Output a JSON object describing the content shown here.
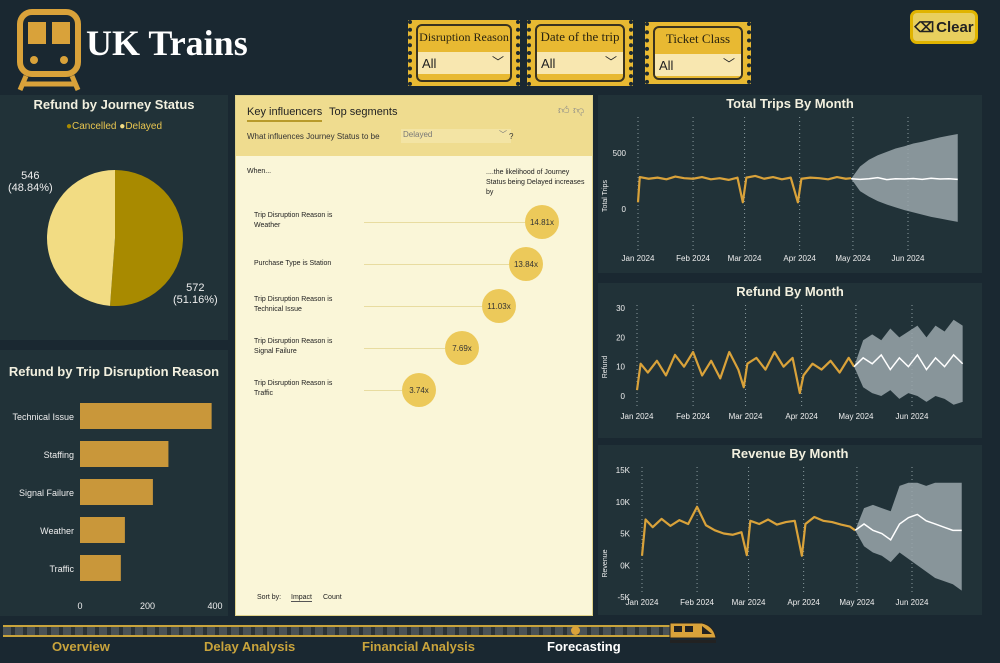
{
  "header": {
    "title": "UK Trains",
    "logo_icon": "train-front-icon",
    "clear_label": "Clear",
    "clear_icon": "eraser-icon"
  },
  "slicers": [
    {
      "label": "Disruption Reason",
      "value": "All"
    },
    {
      "label": "Date of the trip",
      "value": "All"
    },
    {
      "label": "Ticket Class",
      "value": "All"
    }
  ],
  "colors": {
    "background": "#1a2831",
    "panel": "#213238",
    "accent": "#e8b932",
    "series": "#d9a23a",
    "forecast": "#ffffff",
    "band": "#9aa7ab",
    "cancelled": "#a88a00",
    "delayed": "#f2dc83"
  },
  "pie": {
    "title": "Refund by Journey Status",
    "legend": [
      "Cancelled",
      "Delayed"
    ],
    "chart_data": {
      "type": "pie",
      "title": "Refund by Journey Status",
      "slices": [
        {
          "name": "Cancelled",
          "value": 572,
          "label": "572",
          "pct": "(51.16%)"
        },
        {
          "name": "Delayed",
          "value": 546,
          "label": "546",
          "pct": "(48.84%)"
        }
      ],
      "legend_position": "top"
    }
  },
  "bars": {
    "title": "Refund by Trip Disruption Reason",
    "chart_data": {
      "type": "bar",
      "orientation": "horizontal",
      "title": "Refund by Trip Disruption Reason",
      "categories": [
        "Technical Issue",
        "Staffing",
        "Signal Failure",
        "Weather",
        "Traffic"
      ],
      "values": [
        390,
        262,
        216,
        133,
        121
      ],
      "xlim": [
        0,
        400
      ],
      "ticks": [
        "0",
        "200",
        "400"
      ],
      "grid": false
    }
  },
  "influencers": {
    "tabs": [
      "Key influencers",
      "Top segments"
    ],
    "question": "What influences Journey Status to be",
    "selected": "Delayed",
    "question_mark": "?",
    "when": "When...",
    "likelihood": "....the likelihood of Journey Status being Delayed increases by",
    "items": [
      {
        "line1": "Trip Disruption Reason is",
        "line2": "Weather",
        "value": "14.81x",
        "factor": 14.81
      },
      {
        "line1": "Purchase Type is Station",
        "line2": "",
        "value": "13.84x",
        "factor": 13.84
      },
      {
        "line1": "Trip Disruption Reason is",
        "line2": "Technical Issue",
        "value": "11.03x",
        "factor": 11.03
      },
      {
        "line1": "Trip Disruption Reason is",
        "line2": "Signal Failure",
        "value": "7.69x",
        "factor": 7.69
      },
      {
        "line1": "Trip Disruption Reason is",
        "line2": "Traffic",
        "value": "3.74x",
        "factor": 3.74
      }
    ],
    "sort_by": "Sort by:",
    "sort_options": [
      "Impact",
      "Count"
    ]
  },
  "chart_data": [
    {
      "type": "line",
      "title": "Total Trips By Month",
      "ylabel": "Total Trips",
      "yticks": [
        0,
        500
      ],
      "ylim": [
        -150,
        700
      ],
      "xticks": [
        "Jan 2024",
        "Feb 2024",
        "Mar 2024",
        "Apr 2024",
        "May 2024",
        "Jun 2024"
      ],
      "grid": "vertical-dotted",
      "actual": {
        "x": [
          "2024-01-01",
          "2024-01-02",
          "2024-01-07",
          "2024-01-12",
          "2024-01-17",
          "2024-01-22",
          "2024-01-27",
          "2024-02-01",
          "2024-02-06",
          "2024-02-11",
          "2024-02-16",
          "2024-02-21",
          "2024-02-26",
          "2024-02-29",
          "2024-03-02",
          "2024-03-07",
          "2024-03-12",
          "2024-03-17",
          "2024-03-22",
          "2024-03-27",
          "2024-03-31",
          "2024-04-02",
          "2024-04-07",
          "2024-04-12",
          "2024-04-17",
          "2024-04-22",
          "2024-04-27",
          "2024-04-30"
        ],
        "y": [
          60,
          285,
          270,
          280,
          265,
          290,
          275,
          270,
          285,
          265,
          275,
          260,
          280,
          60,
          280,
          295,
          270,
          285,
          265,
          280,
          60,
          270,
          280,
          275,
          265,
          285,
          270,
          275
        ]
      },
      "forecast": {
        "x": [
          "2024-04-30",
          "2024-05-05",
          "2024-05-10",
          "2024-05-15",
          "2024-05-20",
          "2024-05-25",
          "2024-05-30",
          "2024-06-04",
          "2024-06-09",
          "2024-06-14",
          "2024-06-19",
          "2024-06-24",
          "2024-06-29"
        ],
        "y": [
          270,
          265,
          270,
          280,
          262,
          270,
          268,
          272,
          265,
          275,
          268,
          270,
          265
        ],
        "upper": [
          270,
          380,
          440,
          480,
          510,
          540,
          560,
          585,
          600,
          620,
          640,
          655,
          670
        ],
        "lower": [
          270,
          160,
          110,
          70,
          40,
          15,
          -10,
          -30,
          -50,
          -70,
          -85,
          -100,
          -115
        ]
      }
    },
    {
      "type": "line",
      "title": "Refund By Month",
      "ylabel": "Refund",
      "yticks": [
        0,
        10,
        20,
        30
      ],
      "ylim": [
        -5,
        32
      ],
      "xticks": [
        "Jan 2024",
        "Feb 2024",
        "Mar 2024",
        "Apr 2024",
        "May 2024",
        "Jun 2024"
      ],
      "grid": "vertical-dotted",
      "actual": {
        "x": [
          "2024-01-01",
          "2024-01-03",
          "2024-01-07",
          "2024-01-12",
          "2024-01-17",
          "2024-01-22",
          "2024-01-27",
          "2024-02-01",
          "2024-02-06",
          "2024-02-11",
          "2024-02-16",
          "2024-02-21",
          "2024-02-26",
          "2024-02-29",
          "2024-03-02",
          "2024-03-07",
          "2024-03-12",
          "2024-03-17",
          "2024-03-22",
          "2024-03-27",
          "2024-03-31",
          "2024-04-02",
          "2024-04-07",
          "2024-04-12",
          "2024-04-17",
          "2024-04-22",
          "2024-04-27",
          "2024-04-30"
        ],
        "y": [
          2,
          11,
          8,
          12,
          7,
          14,
          10,
          15,
          7,
          12,
          6,
          15,
          9,
          3,
          11,
          13,
          9,
          15,
          10,
          13,
          1,
          7,
          11,
          9,
          12,
          8,
          13,
          10
        ]
      },
      "forecast": {
        "x": [
          "2024-04-30",
          "2024-05-05",
          "2024-05-10",
          "2024-05-15",
          "2024-05-20",
          "2024-05-25",
          "2024-05-30",
          "2024-06-04",
          "2024-06-09",
          "2024-06-14",
          "2024-06-19",
          "2024-06-24",
          "2024-06-29"
        ],
        "y": [
          10,
          13,
          11,
          14,
          9,
          13,
          10,
          14,
          9,
          13,
          10,
          14,
          11
        ],
        "upper": [
          10,
          19,
          21,
          19,
          23,
          20,
          22,
          24,
          20,
          24,
          22,
          26,
          24
        ],
        "lower": [
          10,
          3,
          1,
          0,
          2,
          -1,
          1,
          0,
          -2,
          0,
          -1,
          -3,
          -2
        ]
      }
    },
    {
      "type": "line",
      "title": "Revenue By Month",
      "ylabel": "Revenue",
      "yticks": [
        "-5K",
        "0K",
        "5K",
        "10K",
        "15K"
      ],
      "ylim": [
        -5000,
        15000
      ],
      "xticks": [
        "Jan 2024",
        "Feb 2024",
        "Mar 2024",
        "Apr 2024",
        "May 2024",
        "Jun 2024"
      ],
      "grid": "vertical-dotted",
      "actual": {
        "x": [
          "2024-01-01",
          "2024-01-03",
          "2024-01-07",
          "2024-01-12",
          "2024-01-17",
          "2024-01-22",
          "2024-01-27",
          "2024-02-01",
          "2024-02-06",
          "2024-02-11",
          "2024-02-16",
          "2024-02-21",
          "2024-02-26",
          "2024-02-29",
          "2024-03-02",
          "2024-03-07",
          "2024-03-12",
          "2024-03-17",
          "2024-03-22",
          "2024-03-27",
          "2024-03-31",
          "2024-04-02",
          "2024-04-07",
          "2024-04-12",
          "2024-04-17",
          "2024-04-22",
          "2024-04-27",
          "2024-04-30"
        ],
        "y": [
          1500,
          7200,
          6000,
          7300,
          6200,
          7100,
          6500,
          9200,
          6300,
          5500,
          5000,
          4800,
          5200,
          1600,
          7000,
          6500,
          7200,
          6400,
          6800,
          7000,
          1500,
          6500,
          7600,
          7000,
          6800,
          6400,
          6100,
          5500
        ]
      },
      "forecast": {
        "x": [
          "2024-04-30",
          "2024-05-05",
          "2024-05-10",
          "2024-05-15",
          "2024-05-20",
          "2024-05-25",
          "2024-05-30",
          "2024-06-04",
          "2024-06-09",
          "2024-06-14",
          "2024-06-19",
          "2024-06-24",
          "2024-06-29"
        ],
        "y": [
          5500,
          6500,
          5500,
          5000,
          4000,
          6500,
          7500,
          8000,
          7000,
          6500,
          6000,
          5500,
          5500
        ],
        "upper": [
          5500,
          9000,
          9500,
          9000,
          8500,
          12500,
          13000,
          13000,
          12500,
          13000,
          13000,
          13000,
          13000
        ],
        "lower": [
          5500,
          3000,
          2000,
          1500,
          500,
          2000,
          1000,
          0,
          -1000,
          -2000,
          -2500,
          -3000,
          -4000
        ]
      }
    }
  ],
  "nav": {
    "items": [
      "Overview",
      "Delay Analysis",
      "Financial Analysis",
      "Forecasting"
    ],
    "active": "Forecasting",
    "train_icon": "train-icon"
  }
}
